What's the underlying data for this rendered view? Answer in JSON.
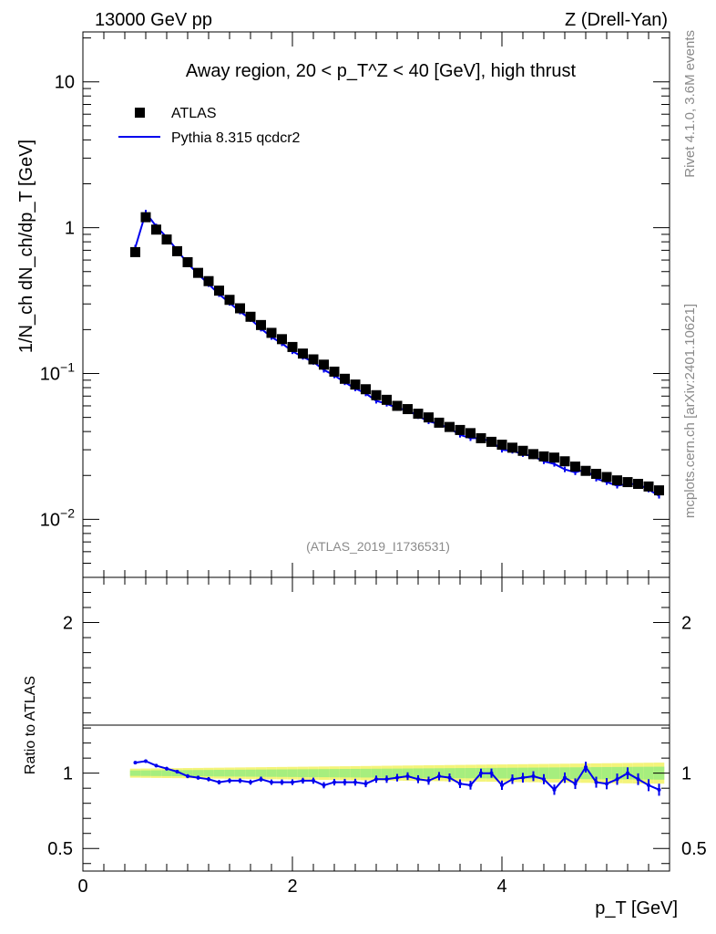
{
  "header": {
    "left": "13000 GeV pp",
    "right": "Z (Drell-Yan)"
  },
  "side": {
    "rivet": "Rivet 4.1.0,  3.6M events",
    "mcplots": "mcplots.cern.ch [arXiv:2401.10621]"
  },
  "chart_data": {
    "type": "line",
    "title": "Away region, 20 < p_T^Z < 40 [GeV], high thrust",
    "analysis_label": "(ATLAS_2019_I1736531)",
    "xlabel": "p_T [GeV]",
    "ylabel_main": "1/N_ch dN_ch/dp_T [GeV]",
    "ylabel_ratio": "Ratio to ATLAS",
    "xlim": [
      0,
      5.6
    ],
    "ylim_main": [
      0.004,
      22
    ],
    "ylim_ratio": [
      0.35,
      2.3
    ],
    "yscale_main": "log",
    "main_ticks": [
      {
        "v": 10,
        "base": "10",
        "exp": ""
      },
      {
        "v": 1,
        "base": "1",
        "exp": ""
      },
      {
        "v": 0.1,
        "base": "10",
        "exp": "−1"
      },
      {
        "v": 0.01,
        "base": "10",
        "exp": "−2"
      }
    ],
    "ratio_ticks": [
      {
        "v": 2,
        "label": "2"
      },
      {
        "v": 1,
        "label": "1"
      },
      {
        "v": 0.5,
        "label": "0.5"
      }
    ],
    "x_ticks": [
      {
        "v": 0,
        "label": "0"
      },
      {
        "v": 2,
        "label": "2"
      },
      {
        "v": 4,
        "label": "4"
      }
    ],
    "legend": {
      "data_label": "ATLAS",
      "mc_label": "Pythia 8.315 qcdcr2"
    },
    "colors": {
      "data": "#000000",
      "mc": "#0000ee",
      "band_inner": "#a6ee7e",
      "band_outer": "#f4f47a"
    },
    "x": [
      0.5,
      0.6,
      0.7,
      0.8,
      0.9,
      1.0,
      1.1,
      1.2,
      1.3,
      1.4,
      1.5,
      1.6,
      1.7,
      1.8,
      1.9,
      2.0,
      2.1,
      2.2,
      2.3,
      2.4,
      2.5,
      2.6,
      2.7,
      2.8,
      2.9,
      3.0,
      3.1,
      3.2,
      3.3,
      3.4,
      3.5,
      3.6,
      3.7,
      3.8,
      3.9,
      4.0,
      4.1,
      4.2,
      4.3,
      4.4,
      4.5,
      4.6,
      4.7,
      4.8,
      4.9,
      5.0,
      5.1,
      5.2,
      5.3,
      5.4,
      5.5
    ],
    "series": [
      {
        "name": "ATLAS",
        "values": [
          0.68,
          1.18,
          0.97,
          0.83,
          0.69,
          0.58,
          0.49,
          0.43,
          0.37,
          0.32,
          0.28,
          0.245,
          0.215,
          0.19,
          0.172,
          0.152,
          0.137,
          0.125,
          0.115,
          0.103,
          0.092,
          0.084,
          0.078,
          0.071,
          0.066,
          0.06,
          0.057,
          0.053,
          0.05,
          0.046,
          0.043,
          0.041,
          0.039,
          0.036,
          0.034,
          0.0325,
          0.031,
          0.0295,
          0.028,
          0.027,
          0.0265,
          0.025,
          0.023,
          0.0215,
          0.0205,
          0.0195,
          0.0185,
          0.018,
          0.0175,
          0.0168,
          0.0158
        ]
      },
      {
        "name": "Pythia 8.315 qcdcr2",
        "values": [
          0.73,
          1.27,
          1.02,
          0.86,
          0.7,
          0.57,
          0.48,
          0.41,
          0.35,
          0.305,
          0.266,
          0.236,
          0.203,
          0.178,
          0.161,
          0.142,
          0.13,
          0.12,
          0.106,
          0.097,
          0.087,
          0.079,
          0.073,
          0.065,
          0.062,
          0.058,
          0.056,
          0.051,
          0.047,
          0.045,
          0.042,
          0.038,
          0.036,
          0.036,
          0.034,
          0.03,
          0.0295,
          0.028,
          0.027,
          0.025,
          0.024,
          0.022,
          0.021,
          0.022,
          0.019,
          0.018,
          0.017,
          0.0175,
          0.0174,
          0.016,
          0.0145
        ]
      }
    ],
    "ratio": [
      1.07,
      1.08,
      1.05,
      1.03,
      1.01,
      0.98,
      0.97,
      0.96,
      0.94,
      0.95,
      0.95,
      0.94,
      0.96,
      0.94,
      0.94,
      0.94,
      0.95,
      0.95,
      0.92,
      0.94,
      0.94,
      0.94,
      0.93,
      0.96,
      0.96,
      0.97,
      0.98,
      0.96,
      0.95,
      0.98,
      0.97,
      0.93,
      0.92,
      1.0,
      1.0,
      0.92,
      0.96,
      0.97,
      0.98,
      0.96,
      0.89,
      0.97,
      0.93,
      1.04,
      0.94,
      0.93,
      0.96,
      1.0,
      0.96,
      0.92,
      0.89
    ]
  }
}
